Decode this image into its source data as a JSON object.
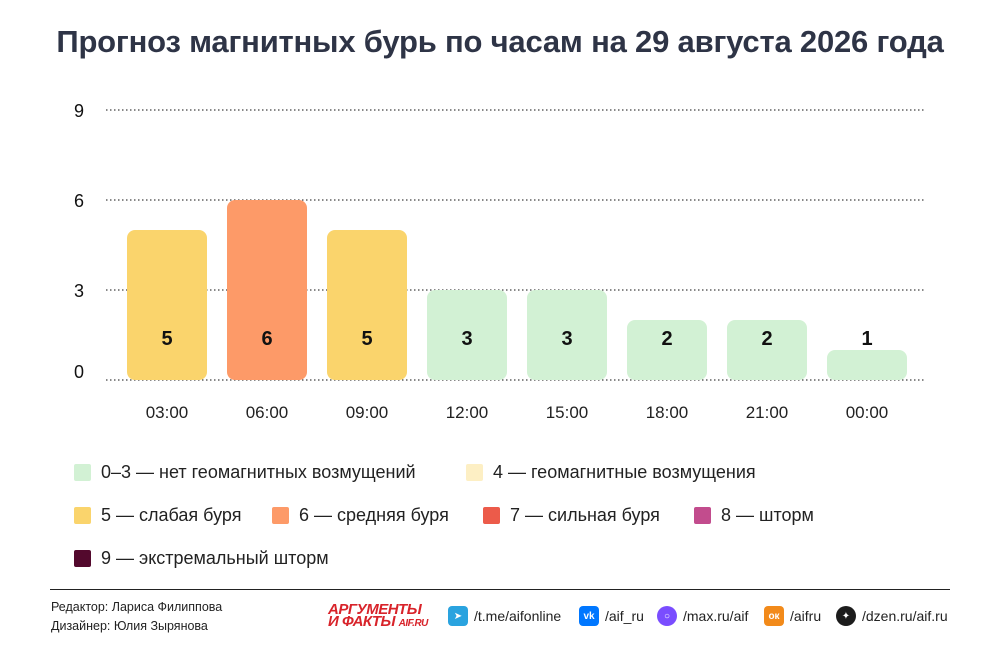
{
  "title": "Прогноз магнитных бурь по часам на 29 августа 2026 года",
  "chart_data": {
    "type": "bar",
    "title": "Прогноз магнитных бурь по часам на 29 августа 2026 года",
    "categories": [
      "03:00",
      "06:00",
      "09:00",
      "12:00",
      "15:00",
      "18:00",
      "21:00",
      "00:00"
    ],
    "values": [
      5,
      6,
      5,
      3,
      3,
      2,
      2,
      1
    ],
    "ylim": [
      0,
      9
    ],
    "yticks": [
      0,
      3,
      6,
      9
    ],
    "grid": "dotted horizontal",
    "legend_placement": "bottom",
    "bar_colors": [
      "#fad46c",
      "#fd9a68",
      "#fad46c",
      "#d2f1d4",
      "#d2f1d4",
      "#d2f1d4",
      "#d2f1d4",
      "#d2f1d4"
    ]
  },
  "legend": [
    {
      "label": "0–3 — нет геомагнитных возмущений",
      "color": "#d2f1d4"
    },
    {
      "label": "4 — геомагнитные возмущения",
      "color": "#fdefc4"
    },
    {
      "label": "5 — слабая буря",
      "color": "#fad46c"
    },
    {
      "label": "6 — средняя буря",
      "color": "#fd9a68"
    },
    {
      "label": "7 — сильная буря",
      "color": "#ec5b4a"
    },
    {
      "label": "8 — шторм",
      "color": "#c24c8d"
    },
    {
      "label": "9 — экстремальный шторм",
      "color": "#53092d"
    }
  ],
  "footer": {
    "editor": "Редактор: Лариса Филиппова",
    "designer": "Дизайнер: Юлия Зырянова",
    "logo_line1": "АРГУМЕНТЫ",
    "logo_line2": "И ФАКТЫ",
    "logo_domain": "AIF.RU",
    "social": [
      {
        "icon": "telegram-icon",
        "label": "/t.me/aifonline",
        "color": "#2aa3df"
      },
      {
        "icon": "vk-icon",
        "label": "/aif_ru",
        "color": "#0077ff"
      },
      {
        "icon": "max-icon",
        "label": "/max.ru/aif",
        "color": "#7a4dff"
      },
      {
        "icon": "odnoklassniki-icon",
        "label": "/aifru",
        "color": "#f28a1a"
      },
      {
        "icon": "dzen-icon",
        "label": "/dzen.ru/aif.ru",
        "color": "#1c1c1c"
      }
    ]
  }
}
